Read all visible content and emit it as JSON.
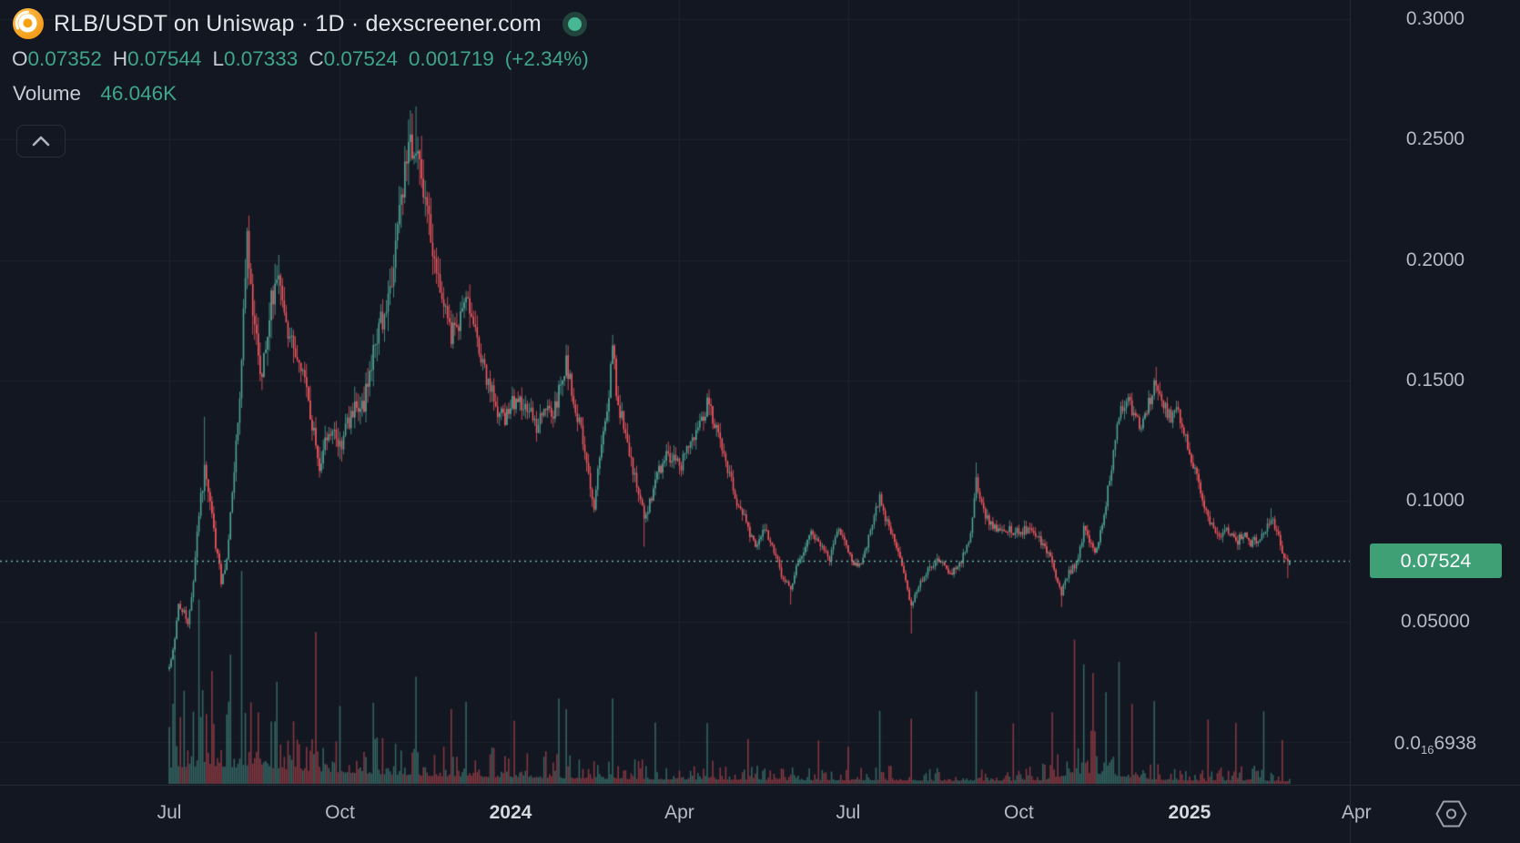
{
  "header": {
    "title": "RLB/USDT on Uniswap · 1D · dexscreener.com",
    "ohlc": {
      "o_label": "O",
      "o": "0.07352",
      "h_label": "H",
      "h": "0.07544",
      "l_label": "L",
      "l": "0.07333",
      "c_label": "C",
      "c": "0.07524",
      "change_abs": "0.001719",
      "change_pct": "(+2.34%)"
    },
    "volume_label": "Volume",
    "volume_value": "46.046K"
  },
  "price_axis": {
    "badge": "0.07524",
    "ticks": [
      {
        "label": "0.3000",
        "value": 0.3
      },
      {
        "label": "0.2500",
        "value": 0.25
      },
      {
        "label": "0.2000",
        "value": 0.2
      },
      {
        "label": "0.1500",
        "value": 0.15
      },
      {
        "label": "0.1000",
        "value": 0.1
      },
      {
        "label": "0.05000",
        "value": 0.05
      }
    ],
    "zero_label": {
      "prefix": "0.0",
      "sub": "16",
      "digits": "6938",
      "value": 0
    }
  },
  "time_axis": {
    "ticks": [
      {
        "label": "Jul",
        "day": 0,
        "bold": false
      },
      {
        "label": "Oct",
        "day": 92,
        "bold": false
      },
      {
        "label": "2024",
        "day": 184,
        "bold": true
      },
      {
        "label": "Apr",
        "day": 275,
        "bold": false
      },
      {
        "label": "Jul",
        "day": 366,
        "bold": false
      },
      {
        "label": "Oct",
        "day": 458,
        "bold": false
      },
      {
        "label": "2025",
        "day": 550,
        "bold": true
      },
      {
        "label": "Apr",
        "day": 640,
        "bold": false
      }
    ]
  },
  "colors": {
    "background": "#131722",
    "grid": "#1e222d",
    "axis_border": "#242936",
    "up": "#4fa294",
    "down": "#f1575e",
    "volume_up": "rgba(79,162,148,0.55)",
    "volume_down": "rgba(241,87,94,0.50)",
    "price_line": "#6fb3a4",
    "badge_bg": "#3fa076",
    "value_teal": "#3fa58a",
    "text_primary": "#e3e5ea",
    "text_secondary": "#b6bac4",
    "logo_orange": "#f7a82b",
    "live_dot": "#47b794"
  },
  "chart_data": {
    "type": "candlestick",
    "title": "RLB/USDT on Uniswap · 1D · dexscreener.com",
    "pair": "RLB/USDT",
    "venue": "Uniswap",
    "interval": "1D",
    "scale": "linear",
    "grid": true,
    "y_axis_ticks": [
      0.3,
      0.25,
      0.2,
      0.15,
      0.1,
      0.05,
      0
    ],
    "y_range_visible": [
      -0.0178,
      0.308
    ],
    "x_axis": {
      "start_date": "2023-07-01",
      "days_total": 605,
      "end_date": "2025-02-24"
    },
    "current_price": 0.07524,
    "last_candle": {
      "open": 0.07352,
      "high": 0.07544,
      "low": 0.07333,
      "close": 0.07524,
      "change_abs": 0.001719,
      "change_pct": 2.34,
      "volume_display": "46.046K"
    },
    "close_anchors_day_price": [
      [
        0,
        0.032
      ],
      [
        3,
        0.042
      ],
      [
        5,
        0.058
      ],
      [
        10,
        0.05
      ],
      [
        13,
        0.066
      ],
      [
        16,
        0.095
      ],
      [
        19,
        0.112
      ],
      [
        23,
        0.094
      ],
      [
        28,
        0.066
      ],
      [
        31,
        0.076
      ],
      [
        37,
        0.131
      ],
      [
        42,
        0.207
      ],
      [
        46,
        0.175
      ],
      [
        50,
        0.151
      ],
      [
        55,
        0.183
      ],
      [
        59,
        0.197
      ],
      [
        63,
        0.175
      ],
      [
        68,
        0.159
      ],
      [
        73,
        0.147
      ],
      [
        81,
        0.114
      ],
      [
        86,
        0.131
      ],
      [
        92,
        0.123
      ],
      [
        100,
        0.141
      ],
      [
        104,
        0.137
      ],
      [
        110,
        0.163
      ],
      [
        115,
        0.175
      ],
      [
        119,
        0.191
      ],
      [
        122,
        0.205
      ],
      [
        125,
        0.222
      ],
      [
        127,
        0.234
      ],
      [
        130,
        0.244
      ],
      [
        133,
        0.252
      ],
      [
        136,
        0.234
      ],
      [
        140,
        0.214
      ],
      [
        144,
        0.193
      ],
      [
        148,
        0.179
      ],
      [
        152,
        0.169
      ],
      [
        157,
        0.175
      ],
      [
        161,
        0.183
      ],
      [
        165,
        0.171
      ],
      [
        169,
        0.157
      ],
      [
        173,
        0.147
      ],
      [
        176,
        0.139
      ],
      [
        181,
        0.135
      ],
      [
        184,
        0.139
      ],
      [
        188,
        0.143
      ],
      [
        193,
        0.139
      ],
      [
        198,
        0.131
      ],
      [
        201,
        0.137
      ],
      [
        207,
        0.135
      ],
      [
        211,
        0.149
      ],
      [
        214,
        0.159
      ],
      [
        218,
        0.141
      ],
      [
        222,
        0.131
      ],
      [
        226,
        0.111
      ],
      [
        229,
        0.099
      ],
      [
        232,
        0.119
      ],
      [
        236,
        0.135
      ],
      [
        239,
        0.164
      ],
      [
        242,
        0.139
      ],
      [
        246,
        0.129
      ],
      [
        251,
        0.11
      ],
      [
        256,
        0.093
      ],
      [
        260,
        0.102
      ],
      [
        264,
        0.112
      ],
      [
        269,
        0.119
      ],
      [
        275,
        0.114
      ],
      [
        279,
        0.121
      ],
      [
        282,
        0.127
      ],
      [
        286,
        0.131
      ],
      [
        290,
        0.141
      ],
      [
        294,
        0.133
      ],
      [
        298,
        0.121
      ],
      [
        302,
        0.111
      ],
      [
        306,
        0.1
      ],
      [
        311,
        0.091
      ],
      [
        316,
        0.08
      ],
      [
        321,
        0.088
      ],
      [
        326,
        0.079
      ],
      [
        330,
        0.07
      ],
      [
        335,
        0.062
      ],
      [
        338,
        0.072
      ],
      [
        342,
        0.079
      ],
      [
        346,
        0.088
      ],
      [
        350,
        0.082
      ],
      [
        356,
        0.076
      ],
      [
        361,
        0.088
      ],
      [
        365,
        0.081
      ],
      [
        369,
        0.072
      ],
      [
        374,
        0.076
      ],
      [
        379,
        0.091
      ],
      [
        383,
        0.101
      ],
      [
        387,
        0.091
      ],
      [
        392,
        0.081
      ],
      [
        396,
        0.07
      ],
      [
        400,
        0.056
      ],
      [
        405,
        0.067
      ],
      [
        410,
        0.072
      ],
      [
        416,
        0.076
      ],
      [
        421,
        0.07
      ],
      [
        426,
        0.074
      ],
      [
        431,
        0.082
      ],
      [
        435,
        0.108
      ],
      [
        438,
        0.098
      ],
      [
        442,
        0.091
      ],
      [
        447,
        0.087
      ],
      [
        452,
        0.088
      ],
      [
        456,
        0.087
      ],
      [
        462,
        0.088
      ],
      [
        467,
        0.087
      ],
      [
        472,
        0.081
      ],
      [
        477,
        0.072
      ],
      [
        481,
        0.062
      ],
      [
        485,
        0.07
      ],
      [
        489,
        0.074
      ],
      [
        493,
        0.088
      ],
      [
        497,
        0.082
      ],
      [
        500,
        0.079
      ],
      [
        504,
        0.095
      ],
      [
        509,
        0.119
      ],
      [
        512,
        0.135
      ],
      [
        516,
        0.143
      ],
      [
        520,
        0.137
      ],
      [
        524,
        0.129
      ],
      [
        528,
        0.141
      ],
      [
        532,
        0.149
      ],
      [
        536,
        0.139
      ],
      [
        540,
        0.135
      ],
      [
        544,
        0.137
      ],
      [
        548,
        0.127
      ],
      [
        551,
        0.117
      ],
      [
        556,
        0.105
      ],
      [
        559,
        0.095
      ],
      [
        563,
        0.088
      ],
      [
        567,
        0.085
      ],
      [
        571,
        0.088
      ],
      [
        575,
        0.082
      ],
      [
        579,
        0.087
      ],
      [
        583,
        0.082
      ],
      [
        587,
        0.085
      ],
      [
        591,
        0.088
      ],
      [
        594,
        0.093
      ],
      [
        598,
        0.085
      ],
      [
        601,
        0.076
      ],
      [
        603,
        0.0735
      ],
      [
        604,
        0.07524
      ]
    ],
    "wick_events": [
      {
        "day": 19,
        "high": 0.135
      },
      {
        "day": 42,
        "high": 0.2135
      },
      {
        "day": 133,
        "high": 0.2638
      },
      {
        "day": 214,
        "high": 0.165
      },
      {
        "day": 239,
        "high": 0.169
      },
      {
        "day": 256,
        "low": 0.081
      },
      {
        "day": 335,
        "low": 0.057
      },
      {
        "day": 383,
        "high": 0.104
      },
      {
        "day": 400,
        "low": 0.045
      },
      {
        "day": 435,
        "high": 0.116
      },
      {
        "day": 481,
        "low": 0.056
      },
      {
        "day": 532,
        "high": 0.1557
      },
      {
        "day": 594,
        "high": 0.097
      },
      {
        "day": 603,
        "low": 0.068
      }
    ],
    "volume_relative_envelope": [
      [
        0,
        0.45
      ],
      [
        20,
        0.5
      ],
      [
        40,
        0.45
      ],
      [
        80,
        0.35
      ],
      [
        100,
        0.3
      ],
      [
        140,
        0.22
      ],
      [
        184,
        0.18
      ],
      [
        220,
        0.15
      ],
      [
        260,
        0.12
      ],
      [
        300,
        0.12
      ],
      [
        340,
        0.1
      ],
      [
        380,
        0.1
      ],
      [
        420,
        0.08
      ],
      [
        455,
        0.09
      ],
      [
        470,
        0.1
      ],
      [
        485,
        0.22
      ],
      [
        500,
        0.28
      ],
      [
        515,
        0.2
      ],
      [
        530,
        0.12
      ],
      [
        560,
        0.08
      ],
      [
        585,
        0.1
      ],
      [
        604,
        0.06
      ]
    ],
    "volume_relative_spikes": [
      [
        3,
        0.62
      ],
      [
        8,
        0.5
      ],
      [
        16,
        0.88
      ],
      [
        23,
        0.55
      ],
      [
        33,
        0.6
      ],
      [
        39,
        1.0
      ],
      [
        58,
        0.5
      ],
      [
        79,
        0.82
      ],
      [
        92,
        0.4
      ],
      [
        110,
        0.45
      ],
      [
        133,
        0.5
      ],
      [
        152,
        0.35
      ],
      [
        160,
        0.38
      ],
      [
        186,
        0.3
      ],
      [
        210,
        0.42
      ],
      [
        214,
        0.35
      ],
      [
        239,
        0.4
      ],
      [
        262,
        0.3
      ],
      [
        290,
        0.32
      ],
      [
        312,
        0.25
      ],
      [
        350,
        0.22
      ],
      [
        366,
        0.2
      ],
      [
        383,
        0.35
      ],
      [
        400,
        0.3
      ],
      [
        435,
        0.5
      ],
      [
        455,
        0.28
      ],
      [
        476,
        0.35
      ],
      [
        488,
        0.78
      ],
      [
        493,
        0.62
      ],
      [
        498,
        0.55
      ],
      [
        505,
        0.5
      ],
      [
        512,
        0.6
      ],
      [
        519,
        0.4
      ],
      [
        531,
        0.45
      ],
      [
        560,
        0.32
      ],
      [
        575,
        0.28
      ],
      [
        590,
        0.38
      ],
      [
        600,
        0.22
      ]
    ]
  }
}
